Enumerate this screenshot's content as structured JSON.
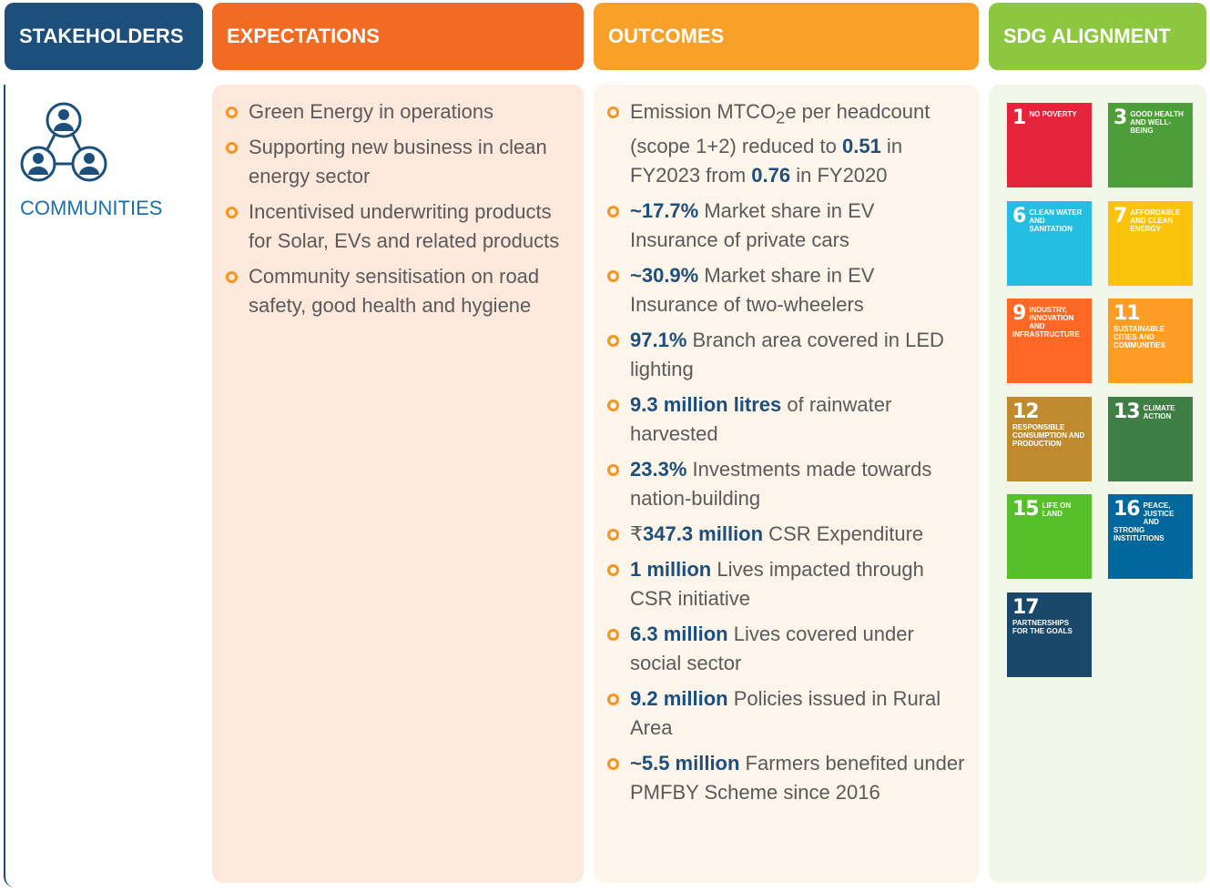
{
  "headers": [
    "STAKEHOLDERS",
    "EXPECTATIONS",
    "OUTCOMES",
    "SDG ALIGNMENT"
  ],
  "stakeholder": "COMMUNITIES",
  "expectations": [
    "Green Energy in operations",
    "Supporting new business in clean energy sector",
    "Incentivised underwriting products for Solar, EVs and related products",
    "Community sensitisation on road safety, good health and hygiene"
  ],
  "outcomes": [
    [
      {
        "text": "Emission MTCO"
      },
      {
        "text": "2",
        "style": "sub"
      },
      {
        "text": "e per headcount (scope 1+2) reduced to "
      },
      {
        "text": "0.51",
        "style": "bold"
      },
      {
        "text": " in FY2023 from "
      },
      {
        "text": "0.76",
        "style": "bold"
      },
      {
        "text": " in FY2020"
      }
    ],
    [
      {
        "text": "~17.7%",
        "style": "bold"
      },
      {
        "text": " Market share in EV Insurance of private cars"
      }
    ],
    [
      {
        "text": "~30.9%",
        "style": "bold"
      },
      {
        "text": " Market share in EV Insurance of two-wheelers"
      }
    ],
    [
      {
        "text": "97.1%",
        "style": "bold"
      },
      {
        "text": " Branch area covered in LED lighting"
      }
    ],
    [
      {
        "text": "9.3 million litres",
        "style": "bold"
      },
      {
        "text": " of rainwater harvested"
      }
    ],
    [
      {
        "text": "23.3%",
        "style": "bold"
      },
      {
        "text": " Investments made towards nation-building"
      }
    ],
    [
      {
        "text": "₹"
      },
      {
        "text": "347.3 million",
        "style": "bold"
      },
      {
        "text": " CSR Expenditure"
      }
    ],
    [
      {
        "text": "1 million",
        "style": "bold"
      },
      {
        "text": " Lives impacted through CSR initiative"
      }
    ],
    [
      {
        "text": "6.3 million",
        "style": "bold"
      },
      {
        "text": " Lives covered under social sector"
      }
    ],
    [
      {
        "text": "9.2 million",
        "style": "bold"
      },
      {
        "text": " Policies issued in Rural Area"
      }
    ],
    [
      {
        "text": "~5.5 million",
        "style": "bold"
      },
      {
        "text": " Farmers benefited under PMFBY Scheme since 2016"
      }
    ]
  ],
  "sdgs": [
    {
      "number": "1",
      "name": "NO POVERTY",
      "color": "#e5243b"
    },
    {
      "number": "3",
      "name": "GOOD HEALTH AND WELL-BEING",
      "color": "#4c9f38"
    },
    {
      "number": "6",
      "name": "CLEAN WATER AND SANITATION",
      "color": "#26bde2"
    },
    {
      "number": "7",
      "name": "AFFORDABLE AND CLEAN ENERGY",
      "color": "#fcc30b"
    },
    {
      "number": "9",
      "name": "INDUSTRY, INNOVATION AND INFRASTRUCTURE",
      "color": "#fd6925"
    },
    {
      "number": "11",
      "name": "SUSTAINABLE CITIES AND COMMUNITIES",
      "color": "#fd9d24"
    },
    {
      "number": "12",
      "name": "RESPONSIBLE CONSUMPTION AND PRODUCTION",
      "color": "#bf8b2e"
    },
    {
      "number": "13",
      "name": "CLIMATE ACTION",
      "color": "#3f7e44"
    },
    {
      "number": "15",
      "name": "LIFE ON LAND",
      "color": "#56c02b"
    },
    {
      "number": "16",
      "name": "PEACE, JUSTICE AND STRONG INSTITUTIONS",
      "color": "#00689d"
    },
    {
      "number": "17",
      "name": "PARTNERSHIPS FOR THE GOALS",
      "color": "#19486a"
    }
  ]
}
